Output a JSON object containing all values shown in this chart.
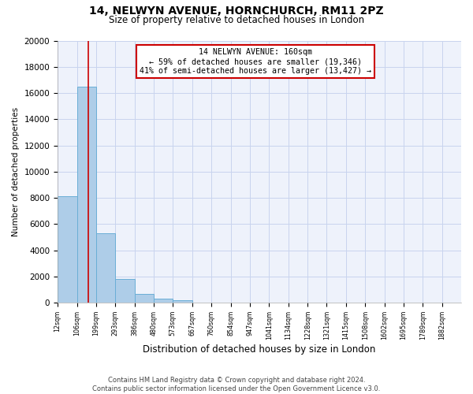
{
  "title1": "14, NELWYN AVENUE, HORNCHURCH, RM11 2PZ",
  "title2": "Size of property relative to detached houses in London",
  "xlabel": "Distribution of detached houses by size in London",
  "ylabel": "Number of detached properties",
  "bin_labels": [
    "12sqm",
    "106sqm",
    "199sqm",
    "293sqm",
    "386sqm",
    "480sqm",
    "573sqm",
    "667sqm",
    "760sqm",
    "854sqm",
    "947sqm",
    "1041sqm",
    "1134sqm",
    "1228sqm",
    "1321sqm",
    "1415sqm",
    "1508sqm",
    "1602sqm",
    "1695sqm",
    "1789sqm",
    "1882sqm"
  ],
  "bar_values": [
    8100,
    16500,
    5300,
    1800,
    700,
    300,
    200,
    0,
    0,
    0,
    0,
    0,
    0,
    0,
    0,
    0,
    0,
    0,
    0,
    0,
    0
  ],
  "bar_color": "#aecde8",
  "bar_edge_color": "#6aaed6",
  "background_color": "#eef2fb",
  "grid_color": "#c8d4ee",
  "vline_x": 160,
  "vline_color": "#cc0000",
  "annotation_title": "14 NELWYN AVENUE: 160sqm",
  "annotation_line1": "← 59% of detached houses are smaller (19,346)",
  "annotation_line2": "41% of semi-detached houses are larger (13,427) →",
  "annotation_box_color": "#ffffff",
  "annotation_box_edge": "#cc0000",
  "footer1": "Contains HM Land Registry data © Crown copyright and database right 2024.",
  "footer2": "Contains public sector information licensed under the Open Government Licence v3.0.",
  "ylim": [
    0,
    20000
  ],
  "yticks": [
    0,
    2000,
    4000,
    6000,
    8000,
    10000,
    12000,
    14000,
    16000,
    18000,
    20000
  ],
  "bin_edges": [
    12,
    106,
    199,
    293,
    386,
    480,
    573,
    667,
    760,
    854,
    947,
    1041,
    1134,
    1228,
    1321,
    1415,
    1508,
    1602,
    1695,
    1789,
    1882
  ],
  "bin_width": 93
}
